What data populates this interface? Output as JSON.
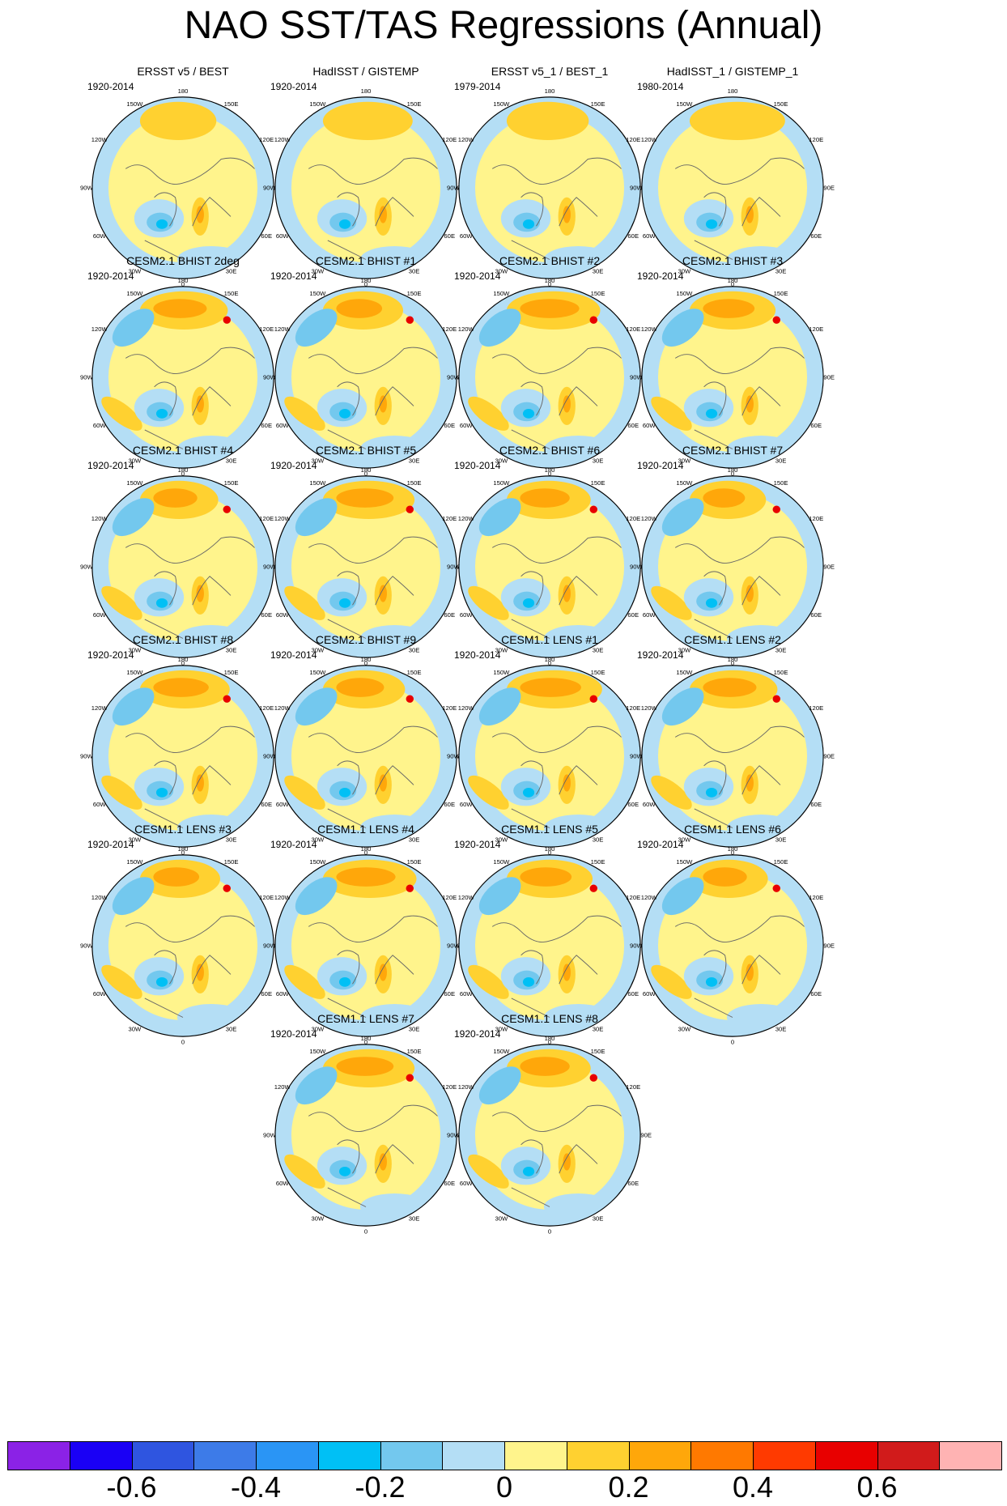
{
  "title": "NAO SST/TAS Regressions (Annual)",
  "panels": [
    {
      "title": "ERSST v5 / BEST",
      "years": "1920-2014",
      "style": "obs"
    },
    {
      "title": "HadISST / GISTEMP",
      "years": "1920-2014",
      "style": "obs"
    },
    {
      "title": "ERSST v5_1 / BEST_1",
      "years": "1979-2014",
      "style": "obs"
    },
    {
      "title": "HadISST_1 / GISTEMP_1",
      "years": "1980-2014",
      "style": "obs"
    },
    {
      "title": "CESM2.1 BHIST 2deg",
      "years": "1920-2014",
      "style": "model"
    },
    {
      "title": "CESM2.1 BHIST #1",
      "years": "1920-2014",
      "style": "model"
    },
    {
      "title": "CESM2.1 BHIST #2",
      "years": "1920-2014",
      "style": "model"
    },
    {
      "title": "CESM2.1 BHIST #3",
      "years": "1920-2014",
      "style": "model"
    },
    {
      "title": "CESM2.1 BHIST #4",
      "years": "1920-2014",
      "style": "model"
    },
    {
      "title": "CESM2.1 BHIST #5",
      "years": "1920-2014",
      "style": "model"
    },
    {
      "title": "CESM2.1 BHIST #6",
      "years": "1920-2014",
      "style": "model"
    },
    {
      "title": "CESM2.1 BHIST #7",
      "years": "1920-2014",
      "style": "model"
    },
    {
      "title": "CESM2.1 BHIST #8",
      "years": "1920-2014",
      "style": "model"
    },
    {
      "title": "CESM2.1 BHIST #9",
      "years": "1920-2014",
      "style": "model"
    },
    {
      "title": "CESM1.1 LENS #1",
      "years": "1920-2014",
      "style": "model"
    },
    {
      "title": "CESM1.1 LENS #2",
      "years": "1920-2014",
      "style": "model"
    },
    {
      "title": "CESM1.1 LENS #3",
      "years": "1920-2014",
      "style": "model"
    },
    {
      "title": "CESM1.1 LENS #4",
      "years": "1920-2014",
      "style": "model"
    },
    {
      "title": "CESM1.1 LENS #5",
      "years": "1920-2014",
      "style": "model"
    },
    {
      "title": "CESM1.1 LENS #6",
      "years": "1920-2014",
      "style": "model"
    },
    {
      "title": "CESM1.1 LENS #7",
      "years": "1920-2014",
      "style": "model"
    },
    {
      "title": "CESM1.1 LENS #8",
      "years": "1920-2014",
      "style": "model"
    }
  ],
  "lon_labels": [
    "180",
    "150E",
    "120E",
    "90E",
    "60E",
    "30E",
    "0",
    "30W",
    "60W",
    "90W",
    "120W",
    "150W"
  ],
  "chart_data": {
    "type": "heatmap",
    "title": "NAO SST/TAS Regressions (Annual)",
    "projection": "north polar stereographic",
    "colorbar": {
      "levels": [
        -0.7,
        -0.6,
        -0.5,
        -0.4,
        -0.3,
        -0.2,
        -0.1,
        0,
        0.1,
        0.2,
        0.3,
        0.4,
        0.5,
        0.6,
        0.7
      ],
      "colors": [
        "#8b22e6",
        "#1a00f5",
        "#2f55e0",
        "#3d7be8",
        "#2a95f5",
        "#00c0f5",
        "#73c8ee",
        "#b4def5",
        "#fff48c",
        "#ffd130",
        "#ffa70a",
        "#ff7900",
        "#ff3a00",
        "#e80000",
        "#d11b1b",
        "#ffb3b3"
      ],
      "tick_values": [
        -0.6,
        -0.4,
        -0.2,
        0,
        0.2,
        0.4,
        0.6
      ],
      "tick_labels": [
        "-0.6",
        "-0.4",
        "-0.2",
        "0",
        "0.2",
        "0.4",
        "0.6"
      ]
    }
  }
}
